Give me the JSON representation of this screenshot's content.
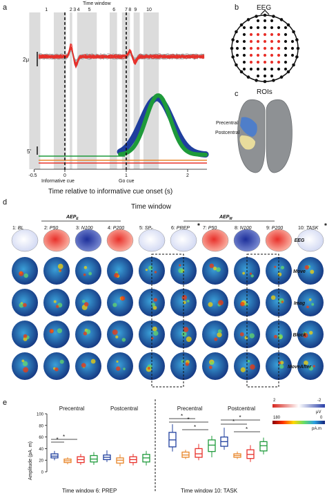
{
  "panel_labels": {
    "a": "a",
    "b": "b",
    "c": "c",
    "d": "d",
    "e": "e"
  },
  "panel_a": {
    "time_window_title": "Time window",
    "window_numbers": [
      "1",
      "2",
      "3",
      "4",
      "5",
      "6",
      "7",
      "8",
      "9",
      "10"
    ],
    "eeg_scale": "2μ",
    "emg_scale": "5'",
    "x_ticks": [
      "-0.5",
      "0",
      "1",
      "2"
    ],
    "cue_labels": {
      "informative": "Informative cue",
      "go": "Go cue"
    },
    "xlabel": "Time relative to informative cue onset  (s)",
    "colors": {
      "eeg": "#e8302a",
      "grey_traces": "#9a9a9a",
      "shade": "#dcdcdc",
      "blue": "#1f3f9e",
      "green": "#1e9a3a",
      "orange": "#e8862a",
      "red": "#e8302a"
    }
  },
  "panel_b": {
    "title": "EEG"
  },
  "panel_c": {
    "title": "ROIs",
    "precentral": "Precentral",
    "postcentral": "Postcentral"
  },
  "panel_d": {
    "title": "Time window",
    "group_aep_e": "AEP",
    "group_aep_e_sub": "E",
    "group_aep_m": "AEP",
    "group_aep_m_sub": "M",
    "columns": [
      "1: BL",
      "2: P50",
      "3: N100",
      "4: P200",
      "5: SP",
      "6: PREP",
      "7: P50",
      "8: N100",
      "9: P200",
      "10: TASK"
    ],
    "col5_sub": "E",
    "star": "*",
    "row_labels": [
      {
        "text": "EEG",
        "color": "#111111"
      },
      {
        "text": "Move",
        "color": "#1f3f9e"
      },
      {
        "text": "Imag",
        "color": "#e8862a"
      },
      {
        "text": "Block",
        "color": "#e8302a"
      },
      {
        "text": "MoveAfter",
        "color": "#1e9a3a"
      }
    ],
    "colorbar1": {
      "min": "2",
      "max": "-2",
      "unit": "μV"
    },
    "colorbar2": {
      "min": "180",
      "max": "0",
      "unit": "pA.m"
    }
  },
  "panel_e": {
    "ylabel": "Amplitude (pA. m)",
    "y_ticks": [
      "0",
      "20",
      "40",
      "60",
      "80",
      "100"
    ],
    "group_labels": [
      "Precentral",
      "Postcentral",
      "Precentral",
      "Postcentral"
    ],
    "window_labels": [
      "Time window 6: PREP",
      "Time window 10: TASK"
    ],
    "star": "*"
  },
  "chart_data": {
    "type": "box",
    "title": "",
    "ylabel": "Amplitude (pA. m)",
    "ylim": [
      0,
      100
    ],
    "series": [
      {
        "name": "Move",
        "color": "#1f3f9e"
      },
      {
        "name": "Imag",
        "color": "#e8862a"
      },
      {
        "name": "Block",
        "color": "#e8302a"
      },
      {
        "name": "MoveAfter",
        "color": "#1e9a3a"
      }
    ],
    "groups": [
      {
        "window": "6",
        "roi": "Precentral",
        "boxes": [
          {
            "min": 20,
            "q1": 24,
            "median": 27,
            "q3": 31,
            "max": 36
          },
          {
            "min": 13,
            "q1": 16,
            "median": 19,
            "q3": 22,
            "max": 25
          },
          {
            "min": 12,
            "q1": 16,
            "median": 21,
            "q3": 26,
            "max": 31
          },
          {
            "min": 12,
            "q1": 17,
            "median": 22,
            "q3": 28,
            "max": 34
          }
        ]
      },
      {
        "window": "6",
        "roi": "Postcentral",
        "boxes": [
          {
            "min": 17,
            "q1": 21,
            "median": 25,
            "q3": 29,
            "max": 37
          },
          {
            "min": 10,
            "q1": 15,
            "median": 20,
            "q3": 24,
            "max": 30
          },
          {
            "min": 11,
            "q1": 16,
            "median": 21,
            "q3": 26,
            "max": 31
          },
          {
            "min": 11,
            "q1": 17,
            "median": 24,
            "q3": 30,
            "max": 36
          }
        ]
      },
      {
        "window": "10",
        "roi": "Precentral",
        "boxes": [
          {
            "min": 35,
            "q1": 43,
            "median": 55,
            "q3": 68,
            "max": 82
          },
          {
            "min": 22,
            "q1": 25,
            "median": 29,
            "q3": 34,
            "max": 38
          },
          {
            "min": 20,
            "q1": 25,
            "median": 31,
            "q3": 40,
            "max": 48
          },
          {
            "min": 25,
            "q1": 35,
            "median": 46,
            "q3": 55,
            "max": 62
          }
        ]
      },
      {
        "window": "10",
        "roi": "Postcentral",
        "boxes": [
          {
            "min": 38,
            "q1": 44,
            "median": 52,
            "q3": 60,
            "max": 76
          },
          {
            "min": 22,
            "q1": 25,
            "median": 28,
            "q3": 31,
            "max": 35
          },
          {
            "min": 17,
            "q1": 23,
            "median": 30,
            "q3": 38,
            "max": 46
          },
          {
            "min": 30,
            "q1": 36,
            "median": 45,
            "q3": 52,
            "max": 59
          }
        ]
      }
    ]
  }
}
